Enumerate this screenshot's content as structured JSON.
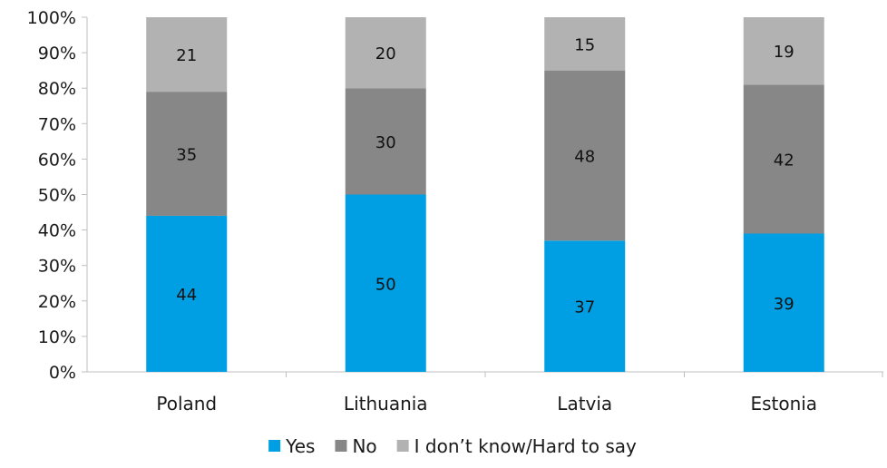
{
  "chart_data": {
    "type": "bar",
    "stacked": true,
    "categories": [
      "Poland",
      "Lithuania",
      "Latvia",
      "Estonia"
    ],
    "series": [
      {
        "name": "Yes",
        "values": [
          44,
          50,
          37,
          39
        ],
        "color": "#009fe3"
      },
      {
        "name": "No",
        "values": [
          35,
          30,
          48,
          42
        ],
        "color": "#878787"
      },
      {
        "name": "I don’t know/Hard to say",
        "values": [
          21,
          20,
          15,
          19
        ],
        "color": "#b2b2b2"
      }
    ],
    "yticks": [
      "0%",
      "10%",
      "20%",
      "30%",
      "40%",
      "50%",
      "60%",
      "70%",
      "80%",
      "90%",
      "100%"
    ],
    "ylim": [
      0,
      100
    ],
    "grid": false,
    "legend_position": "bottom",
    "title": "",
    "xlabel": "",
    "ylabel": ""
  }
}
